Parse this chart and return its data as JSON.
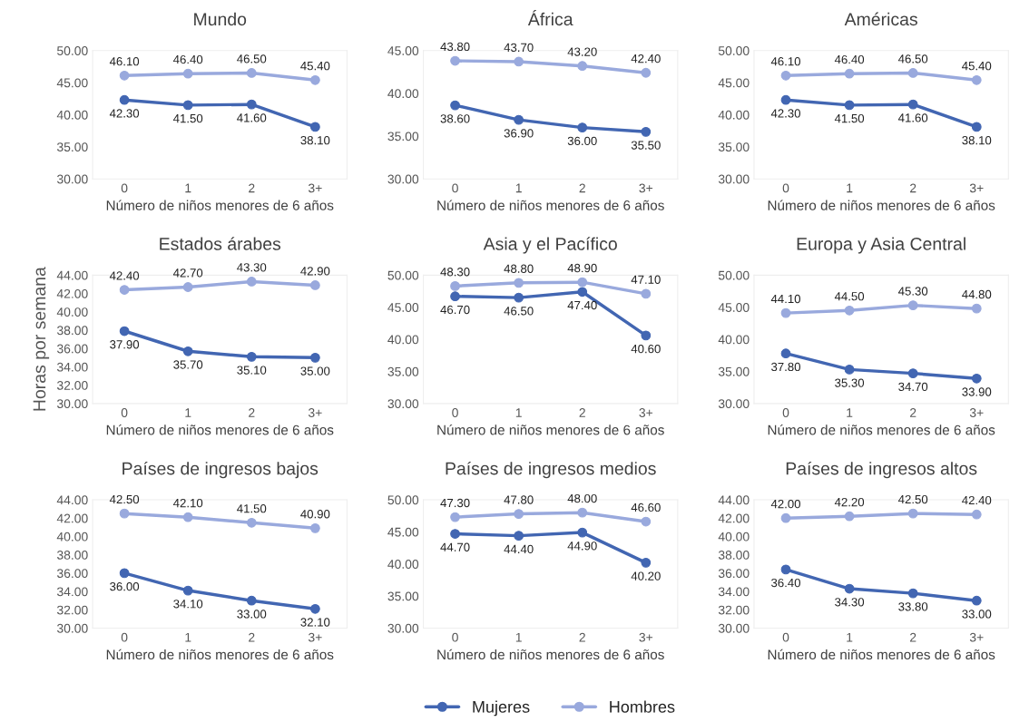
{
  "chart_data": [
    {
      "type": "line",
      "title": "Mundo",
      "xlabel": "Número de niños menores de 6 años",
      "categories": [
        "0",
        "1",
        "2",
        "3+"
      ],
      "ylim": [
        30,
        50
      ],
      "yticks": [
        {
          "value": 30,
          "label": "30.00"
        },
        {
          "value": 35,
          "label": "35.00"
        },
        {
          "value": 40,
          "label": "40.00"
        },
        {
          "value": 45,
          "label": "45.00"
        },
        {
          "value": 50,
          "label": "50.00"
        }
      ],
      "marker": "circle",
      "grid": false,
      "series": [
        {
          "color": "#4266b2",
          "values": [
            42.3,
            41.5,
            41.6,
            38.1
          ],
          "value_labels": [
            "42.30",
            "41.50",
            "41.60",
            "38.10"
          ]
        },
        {
          "color": "#99a9dd",
          "values": [
            46.1,
            46.4,
            46.5,
            45.4
          ],
          "value_labels": [
            "46.10",
            "46.40",
            "46.50",
            "45.40"
          ]
        }
      ]
    },
    {
      "type": "line",
      "title": "África",
      "xlabel": "Número de niños menores de 6 años",
      "categories": [
        "0",
        "1",
        "2",
        "3+"
      ],
      "ylim": [
        30,
        45
      ],
      "yticks": [
        {
          "value": 30,
          "label": "30.00"
        },
        {
          "value": 35,
          "label": "35.00"
        },
        {
          "value": 40,
          "label": "40.00"
        },
        {
          "value": 45,
          "label": "45.00"
        }
      ],
      "marker": "circle",
      "grid": false,
      "series": [
        {
          "color": "#4266b2",
          "values": [
            38.6,
            36.9,
            36.0,
            35.5
          ],
          "value_labels": [
            "38.60",
            "36.90",
            "36.00",
            "35.50"
          ]
        },
        {
          "color": "#99a9dd",
          "values": [
            43.8,
            43.7,
            43.2,
            42.4
          ],
          "value_labels": [
            "43.80",
            "43.70",
            "43.20",
            "42.40"
          ]
        }
      ]
    },
    {
      "type": "line",
      "title": "Américas",
      "xlabel": "Número de niños menores de 6 años",
      "categories": [
        "0",
        "1",
        "2",
        "3+"
      ],
      "ylim": [
        30,
        50
      ],
      "yticks": [
        {
          "value": 30,
          "label": "30.00"
        },
        {
          "value": 35,
          "label": "35.00"
        },
        {
          "value": 40,
          "label": "40.00"
        },
        {
          "value": 45,
          "label": "45.00"
        },
        {
          "value": 50,
          "label": "50.00"
        }
      ],
      "marker": "circle",
      "grid": false,
      "series": [
        {
          "color": "#4266b2",
          "values": [
            42.3,
            41.5,
            41.6,
            38.1
          ],
          "value_labels": [
            "42.30",
            "41.50",
            "41.60",
            "38.10"
          ]
        },
        {
          "color": "#99a9dd",
          "values": [
            46.1,
            46.4,
            46.5,
            45.4
          ],
          "value_labels": [
            "46.10",
            "46.40",
            "46.50",
            "45.40"
          ]
        }
      ]
    },
    {
      "type": "line",
      "title": "Estados árabes",
      "xlabel": "Número de niños menores de 6 años",
      "ylabel": "Horas por semana",
      "categories": [
        "0",
        "1",
        "2",
        "3+"
      ],
      "ylim": [
        30,
        44
      ],
      "yticks": [
        {
          "value": 30,
          "label": "30.00"
        },
        {
          "value": 32,
          "label": "32.00"
        },
        {
          "value": 34,
          "label": "34.00"
        },
        {
          "value": 36,
          "label": "36.00"
        },
        {
          "value": 38,
          "label": "38.00"
        },
        {
          "value": 40,
          "label": "40.00"
        },
        {
          "value": 42,
          "label": "42.00"
        },
        {
          "value": 44,
          "label": "44.00"
        }
      ],
      "marker": "circle",
      "grid": false,
      "series": [
        {
          "color": "#4266b2",
          "values": [
            37.9,
            35.7,
            35.1,
            35.0
          ],
          "value_labels": [
            "37.90",
            "35.70",
            "35.10",
            "35.00"
          ]
        },
        {
          "color": "#99a9dd",
          "values": [
            42.4,
            42.7,
            43.3,
            42.9
          ],
          "value_labels": [
            "42.40",
            "42.70",
            "43.30",
            "42.90"
          ]
        }
      ]
    },
    {
      "type": "line",
      "title": "Asia y el Pacífico",
      "xlabel": "Número de niños menores de 6 años",
      "categories": [
        "0",
        "1",
        "2",
        "3+"
      ],
      "ylim": [
        30,
        50
      ],
      "yticks": [
        {
          "value": 30,
          "label": "30.00"
        },
        {
          "value": 35,
          "label": "35.00"
        },
        {
          "value": 40,
          "label": "40.00"
        },
        {
          "value": 45,
          "label": "45.00"
        },
        {
          "value": 50,
          "label": "50.00"
        }
      ],
      "marker": "circle",
      "grid": false,
      "series": [
        {
          "color": "#4266b2",
          "values": [
            46.7,
            46.5,
            47.4,
            40.6
          ],
          "value_labels": [
            "46.70",
            "46.50",
            "47.40",
            "40.60"
          ]
        },
        {
          "color": "#99a9dd",
          "values": [
            48.3,
            48.8,
            48.9,
            47.1
          ],
          "value_labels": [
            "48.30",
            "48.80",
            "48.90",
            "47.10"
          ]
        }
      ]
    },
    {
      "type": "line",
      "title": "Europa y Asia Central",
      "xlabel": "Número de niños menores de 6 años",
      "categories": [
        "0",
        "1",
        "2",
        "3+"
      ],
      "ylim": [
        30,
        50
      ],
      "yticks": [
        {
          "value": 30,
          "label": "30.00"
        },
        {
          "value": 35,
          "label": "35.00"
        },
        {
          "value": 40,
          "label": "40.00"
        },
        {
          "value": 45,
          "label": "45.00"
        },
        {
          "value": 50,
          "label": "50.00"
        }
      ],
      "marker": "circle",
      "grid": false,
      "series": [
        {
          "color": "#4266b2",
          "values": [
            37.8,
            35.3,
            34.7,
            33.9
          ],
          "value_labels": [
            "37.80",
            "35.30",
            "34.70",
            "33.90"
          ]
        },
        {
          "color": "#99a9dd",
          "values": [
            44.1,
            44.5,
            45.3,
            44.8
          ],
          "value_labels": [
            "44.10",
            "44.50",
            "45.30",
            "44.80"
          ]
        }
      ]
    },
    {
      "type": "line",
      "title": "Países de ingresos bajos",
      "xlabel": "Número de niños menores de 6 años",
      "categories": [
        "0",
        "1",
        "2",
        "3+"
      ],
      "ylim": [
        30,
        44
      ],
      "yticks": [
        {
          "value": 30,
          "label": "30.00"
        },
        {
          "value": 32,
          "label": "32.00"
        },
        {
          "value": 34,
          "label": "34.00"
        },
        {
          "value": 36,
          "label": "36.00"
        },
        {
          "value": 38,
          "label": "38.00"
        },
        {
          "value": 40,
          "label": "40.00"
        },
        {
          "value": 42,
          "label": "42.00"
        },
        {
          "value": 44,
          "label": "44.00"
        }
      ],
      "marker": "circle",
      "grid": false,
      "series": [
        {
          "color": "#4266b2",
          "values": [
            36.0,
            34.1,
            33.0,
            32.1
          ],
          "value_labels": [
            "36.00",
            "34.10",
            "33.00",
            "32.10"
          ]
        },
        {
          "color": "#99a9dd",
          "values": [
            42.5,
            42.1,
            41.5,
            40.9
          ],
          "value_labels": [
            "42.50",
            "42.10",
            "41.50",
            "40.90"
          ]
        }
      ]
    },
    {
      "type": "line",
      "title": "Países de ingresos medios",
      "xlabel": "Número de niños menores de 6 años",
      "categories": [
        "0",
        "1",
        "2",
        "3+"
      ],
      "ylim": [
        30,
        50
      ],
      "yticks": [
        {
          "value": 30,
          "label": "30.00"
        },
        {
          "value": 35,
          "label": "35.00"
        },
        {
          "value": 40,
          "label": "40.00"
        },
        {
          "value": 45,
          "label": "45.00"
        },
        {
          "value": 50,
          "label": "50.00"
        }
      ],
      "marker": "circle",
      "grid": false,
      "legend": "bottom",
      "series": [
        {
          "name": "Mujeres",
          "color": "#4266b2",
          "values": [
            44.7,
            44.4,
            44.9,
            40.2
          ],
          "value_labels": [
            "44.70",
            "44.40",
            "44.90",
            "40.20"
          ]
        },
        {
          "name": "Hombres",
          "color": "#99a9dd",
          "values": [
            47.3,
            47.8,
            48.0,
            46.6
          ],
          "value_labels": [
            "47.30",
            "47.80",
            "48.00",
            "46.60"
          ]
        }
      ]
    },
    {
      "type": "line",
      "title": "Países de ingresos altos",
      "xlabel": "Número de niños menores de 6 años",
      "categories": [
        "0",
        "1",
        "2",
        "3+"
      ],
      "ylim": [
        30,
        44
      ],
      "yticks": [
        {
          "value": 30,
          "label": "30.00"
        },
        {
          "value": 32,
          "label": "32.00"
        },
        {
          "value": 34,
          "label": "34.00"
        },
        {
          "value": 36,
          "label": "36.00"
        },
        {
          "value": 38,
          "label": "38.00"
        },
        {
          "value": 40,
          "label": "40.00"
        },
        {
          "value": 42,
          "label": "42.00"
        },
        {
          "value": 44,
          "label": "44.00"
        }
      ],
      "marker": "circle",
      "grid": false,
      "series": [
        {
          "color": "#4266b2",
          "values": [
            36.4,
            34.3,
            33.8,
            33.0
          ],
          "value_labels": [
            "36.40",
            "34.30",
            "33.80",
            "33.00"
          ]
        },
        {
          "color": "#99a9dd",
          "values": [
            42.0,
            42.2,
            42.5,
            42.4
          ],
          "value_labels": [
            "42.00",
            "42.20",
            "42.50",
            "42.40"
          ]
        }
      ]
    }
  ]
}
